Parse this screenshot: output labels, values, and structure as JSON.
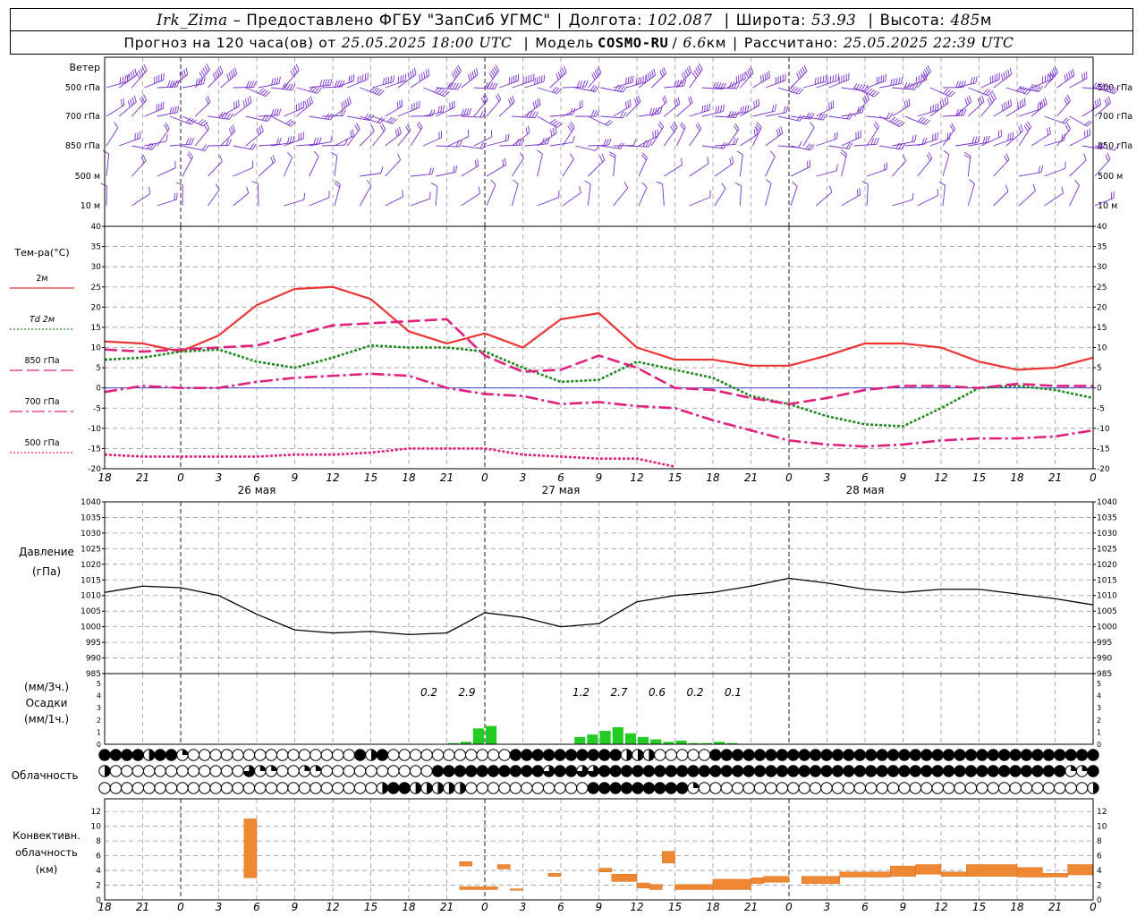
{
  "header": {
    "station": "Irk_Zima",
    "provider": "– Предоставлено ФГБУ \"ЗапСиб УГМС\"",
    "lon_label": "Долгота:",
    "lon": "102.087",
    "lat_label": "Широта:",
    "lat": "53.93",
    "alt_label": "Высота:",
    "alt": "485",
    "alt_unit": "м",
    "forecast_label": "Прогноз на 120 часа(ов) от",
    "forecast_start": "25.05.2025 18:00 UTC",
    "model_label": "Модель",
    "model": "COSMO-RU",
    "model_res": "6.6",
    "model_res_unit": "км",
    "computed_label": "Рассчитано:",
    "computed": "25.05.2025 22:39 UTC"
  },
  "chart_data": {
    "type": "meteogram",
    "x_hours_utc": [
      18,
      21,
      0,
      3,
      6,
      9,
      12,
      15,
      18,
      21,
      0,
      3,
      6,
      9,
      12,
      15,
      18,
      21,
      0,
      3,
      6,
      9,
      12,
      15,
      18,
      21,
      0
    ],
    "date_labels": [
      {
        "text": "26 мая",
        "at_hour": 12
      },
      {
        "text": "27 мая",
        "at_hour": 36
      },
      {
        "text": "28 мая",
        "at_hour": 60
      }
    ],
    "wind": {
      "title": "Ветер",
      "levels": [
        "500 гПа",
        "700 гПа",
        "850 гПа",
        "500 м",
        "10 м"
      ],
      "barbs_description": "Wind barbs at each time step for each level"
    },
    "temperature": {
      "title": "Тем-ра(°C)",
      "ylim": [
        -20,
        40
      ],
      "yticks": [
        -20,
        -15,
        -10,
        -5,
        0,
        5,
        10,
        15,
        20,
        25,
        30,
        35,
        40
      ],
      "series": [
        {
          "name": "2м",
          "color": "#ee3333",
          "style": "solid",
          "x": [
            0,
            3,
            6,
            9,
            12,
            15,
            18,
            21,
            24,
            27,
            30,
            33,
            36,
            39,
            42,
            45,
            48,
            51,
            54,
            57,
            60,
            63,
            66,
            69,
            72,
            75,
            78
          ],
          "y": [
            11.5,
            11,
            9,
            13,
            20.5,
            24.5,
            25,
            22,
            14,
            11,
            13.5,
            10,
            17,
            18.5,
            10,
            7,
            7,
            5.5,
            5.5,
            8,
            11,
            11,
            10,
            6.5,
            4.5,
            5,
            7.5
          ]
        },
        {
          "name": "Td 2м",
          "color": "#228822",
          "style": "dotted",
          "x": [
            0,
            3,
            6,
            9,
            12,
            15,
            18,
            21,
            24,
            27,
            30,
            33,
            36,
            39,
            42,
            45,
            48,
            51,
            54,
            57,
            60,
            63,
            66,
            69,
            72,
            75,
            78
          ],
          "y": [
            7,
            7.5,
            9,
            9.5,
            6.5,
            5,
            7.5,
            10.5,
            10,
            10,
            9,
            5,
            1.5,
            2,
            6.5,
            4.5,
            2.5,
            -2,
            -4,
            -7,
            -9,
            -9.5,
            -5,
            0,
            0.5,
            -0.5,
            -2.5
          ]
        },
        {
          "name": "850 гПа",
          "color": "#e0207f",
          "style": "longdash",
          "x": [
            0,
            3,
            6,
            9,
            12,
            15,
            18,
            21,
            24,
            27,
            30,
            33,
            36,
            39,
            42,
            45,
            48,
            51,
            54,
            57,
            60,
            63,
            66,
            69,
            72,
            75,
            78
          ],
          "y": [
            9.5,
            9,
            9.5,
            10,
            10.5,
            13,
            15.5,
            16,
            16.5,
            17,
            8,
            4,
            4.5,
            8,
            5,
            0,
            -0.5,
            -2.5,
            -4,
            -2.5,
            -0.5,
            0.5,
            0.5,
            0,
            1,
            0.5,
            0.5
          ]
        },
        {
          "name": "700 гПа",
          "color": "#e0207f",
          "style": "dashdot",
          "x": [
            0,
            3,
            6,
            9,
            12,
            15,
            18,
            21,
            24,
            27,
            30,
            33,
            36,
            39,
            42,
            45,
            48,
            51,
            54,
            57,
            60,
            63,
            66,
            69,
            72,
            75,
            78
          ],
          "y": [
            -1,
            0.5,
            0,
            0,
            1.5,
            2.5,
            3,
            3.5,
            3,
            0,
            -1.5,
            -2,
            -4,
            -3.5,
            -4.5,
            -5,
            -8,
            -10.5,
            -13,
            -14,
            -14.5,
            -14,
            -13,
            -12.5,
            -12.5,
            -12,
            -10.5
          ]
        },
        {
          "name": "500 гПа",
          "color": "#e0207f",
          "style": "dotted",
          "x": [
            0,
            3,
            6,
            9,
            12,
            15,
            18,
            21,
            24,
            27,
            30,
            33,
            36,
            39,
            42,
            45
          ],
          "y": [
            -16.5,
            -17,
            -17,
            -17,
            -17,
            -16.5,
            -16.5,
            -16,
            -15,
            -15,
            -15,
            -16.5,
            -17,
            -17.5,
            -17.5,
            -19.5
          ]
        }
      ]
    },
    "pressure": {
      "title": "Давление",
      "unit": "(гПа)",
      "ylim": [
        985,
        1040
      ],
      "yticks": [
        985,
        990,
        995,
        1000,
        1005,
        1010,
        1015,
        1020,
        1025,
        1030,
        1035,
        1040
      ],
      "x": [
        0,
        3,
        6,
        9,
        12,
        15,
        18,
        21,
        24,
        27,
        30,
        33,
        36,
        39,
        42,
        45,
        48,
        51,
        54,
        57,
        60,
        63,
        66,
        69,
        72,
        75,
        78
      ],
      "y": [
        1011,
        1013,
        1012.5,
        1010,
        1004,
        999,
        998,
        998.5,
        997.5,
        998,
        1004.5,
        1003,
        1000,
        1001,
        1008,
        1010,
        1011,
        1013,
        1015.5,
        1014,
        1012,
        1011,
        1012,
        1012,
        1010.5,
        1009,
        1007
      ]
    },
    "precip": {
      "title": "Осадки",
      "unit_top": "(мм/3ч.)",
      "unit_bottom": "(мм/1ч.)",
      "ylim": [
        0,
        5
      ],
      "yticks": [
        0,
        1,
        2,
        3,
        4,
        5
      ],
      "totals": [
        {
          "at_hour": 27,
          "text": "0.2"
        },
        {
          "at_hour": 30,
          "text": "2.9"
        },
        {
          "at_hour": 39,
          "text": "1.2"
        },
        {
          "at_hour": 42,
          "text": "2.7"
        },
        {
          "at_hour": 45,
          "text": "0.6"
        },
        {
          "at_hour": 48,
          "text": "0.2"
        },
        {
          "at_hour": 51,
          "text": "0.1"
        }
      ],
      "hourly_bars": [
        {
          "hour": 28,
          "v": 0.1
        },
        {
          "hour": 29,
          "v": 0.2
        },
        {
          "hour": 30,
          "v": 1.3
        },
        {
          "hour": 31,
          "v": 1.5
        },
        {
          "hour": 38,
          "v": 0.6
        },
        {
          "hour": 39,
          "v": 0.8
        },
        {
          "hour": 40,
          "v": 1.1
        },
        {
          "hour": 41,
          "v": 1.4
        },
        {
          "hour": 42,
          "v": 0.9
        },
        {
          "hour": 43,
          "v": 0.6
        },
        {
          "hour": 44,
          "v": 0.4
        },
        {
          "hour": 45,
          "v": 0.2
        },
        {
          "hour": 46,
          "v": 0.3
        },
        {
          "hour": 47,
          "v": 0.1
        },
        {
          "hour": 48,
          "v": 0.1
        },
        {
          "hour": 49,
          "v": 0.2
        },
        {
          "hour": 50,
          "v": 0.1
        }
      ]
    },
    "cloudiness": {
      "title": "Облачность",
      "rows": [
        "FFFFHFFQ000000000000000FHF00000000000FFFFFFFFFFHHH00000FFFFFFFFFFFFFFFFFFFFFFFFFFFFFFFFFFF",
        "H000000000000TQQ00QQ0000000000FFFFFFFFFFTFFTTFFFFFFFFFFFFFFFFFFFFFFFFFFFFFFFFFFFFFFFFFFQQF",
        "0000000000000000000000000HFFHHHHH00000000000FFFFFFFFFQ00000000000000000000000000000000000H"
      ]
    },
    "convective": {
      "title_lines": [
        "Конвективн.",
        "облачность",
        "(км)"
      ],
      "ylim": [
        0,
        13
      ],
      "yticks": [
        0,
        2,
        4,
        6,
        8,
        10,
        12
      ],
      "bars": [
        {
          "x0": 11,
          "x1": 12,
          "base": 3,
          "top": 11
        },
        {
          "x0": 28,
          "x1": 29,
          "base": 4.6,
          "top": 5.2
        },
        {
          "x0": 28,
          "x1": 31,
          "base": 1.4,
          "top": 1.8
        },
        {
          "x0": 31,
          "x1": 32,
          "base": 4.2,
          "top": 4.8
        },
        {
          "x0": 32,
          "x1": 33,
          "base": 1.3,
          "top": 1.5
        },
        {
          "x0": 35,
          "x1": 36,
          "base": 3.2,
          "top": 3.6
        },
        {
          "x0": 39,
          "x1": 40,
          "base": 3.8,
          "top": 4.3
        },
        {
          "x0": 40,
          "x1": 42,
          "base": 2.5,
          "top": 3.5
        },
        {
          "x0": 42,
          "x1": 43,
          "base": 1.6,
          "top": 2.3
        },
        {
          "x0": 43,
          "x1": 44,
          "base": 1.4,
          "top": 2.1
        },
        {
          "x0": 44,
          "x1": 45,
          "base": 5.0,
          "top": 6.6
        },
        {
          "x0": 45,
          "x1": 48,
          "base": 1.4,
          "top": 2.1
        },
        {
          "x0": 48,
          "x1": 51,
          "base": 1.4,
          "top": 2.8
        },
        {
          "x0": 51,
          "x1": 52,
          "base": 2.2,
          "top": 3.0
        },
        {
          "x0": 52,
          "x1": 54,
          "base": 2.4,
          "top": 3.2
        },
        {
          "x0": 55,
          "x1": 58,
          "base": 2.2,
          "top": 3.2
        },
        {
          "x0": 58,
          "x1": 62,
          "base": 3.1,
          "top": 3.8
        },
        {
          "x0": 62,
          "x1": 64,
          "base": 3.2,
          "top": 4.6
        },
        {
          "x0": 64,
          "x1": 66,
          "base": 3.5,
          "top": 4.8
        },
        {
          "x0": 66,
          "x1": 68,
          "base": 3.2,
          "top": 3.8
        },
        {
          "x0": 68,
          "x1": 72,
          "base": 3.2,
          "top": 4.8
        },
        {
          "x0": 72,
          "x1": 74,
          "base": 3.1,
          "top": 4.4
        },
        {
          "x0": 74,
          "x1": 76,
          "base": 3.1,
          "top": 3.6
        },
        {
          "x0": 76,
          "x1": 78,
          "base": 3.4,
          "top": 4.8
        }
      ]
    }
  }
}
